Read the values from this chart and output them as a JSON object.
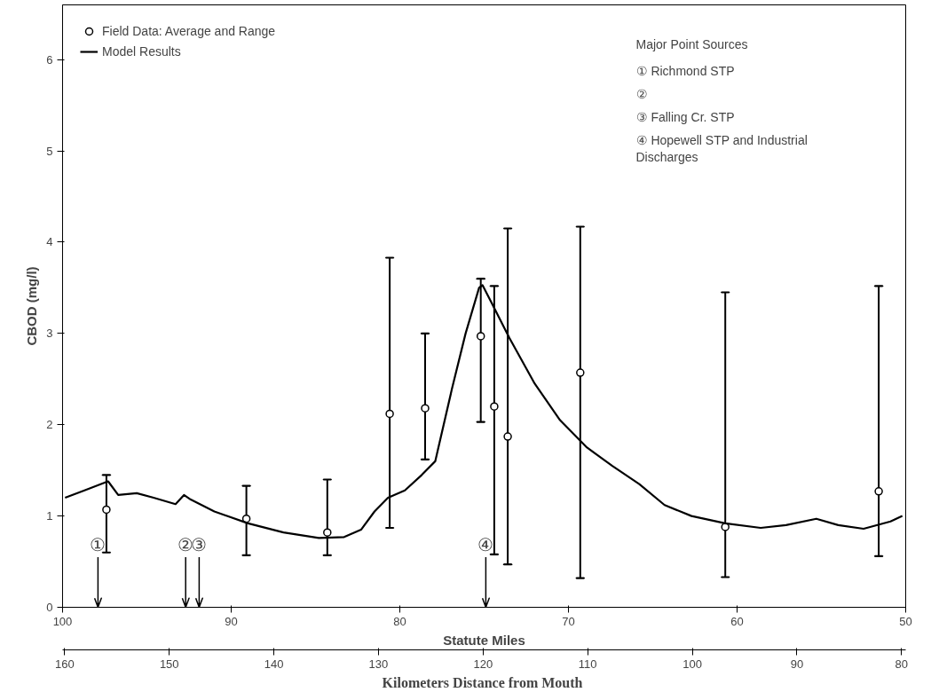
{
  "chart_data": {
    "type": "line",
    "xlabel": "Statute Miles",
    "ylabel": "CBOD (mg/l)",
    "x2label": "Kilometers  Distance from Mouth",
    "xlim": [
      100,
      50
    ],
    "xticks": [
      100,
      90,
      80,
      70,
      60,
      50
    ],
    "ylim": [
      0,
      6.6
    ],
    "yticks": [
      0,
      1,
      2,
      3,
      4,
      5,
      6
    ],
    "x2lim": [
      160.2,
      79.6
    ],
    "x2ticks": [
      160,
      150,
      140,
      130,
      120,
      110,
      100,
      90,
      80
    ],
    "grid": false,
    "legend": "top left",
    "series": [
      {
        "name": "Field Data: Average and Range",
        "type": "scatter",
        "marker": "circle",
        "color": "#000000",
        "x": [
          97.4,
          89.1,
          84.3,
          80.6,
          78.5,
          75.2,
          74.4,
          73.6,
          69.3,
          60.7,
          51.6
        ],
        "values": [
          1.07,
          0.97,
          0.82,
          2.12,
          2.18,
          2.97,
          2.2,
          1.87,
          2.57,
          0.88,
          1.27
        ],
        "errors": [
          [
            0.6,
            1.45
          ],
          [
            0.57,
            1.33
          ],
          [
            0.57,
            1.4
          ],
          [
            0.87,
            3.83
          ],
          [
            1.62,
            3.0
          ],
          [
            2.03,
            3.6
          ],
          [
            0.58,
            3.52
          ],
          [
            0.47,
            4.15
          ],
          [
            0.32,
            4.17
          ],
          [
            0.33,
            3.45
          ],
          [
            0.56,
            3.52
          ]
        ]
      },
      {
        "name": "Model Results",
        "color": "#000000",
        "line_style": "solid",
        "x": [
          99.85,
          98.7,
          97.3,
          96.7,
          95.6,
          94.6,
          93.3,
          92.8,
          92.4,
          91.0,
          89.0,
          86.9,
          84.8,
          83.3,
          82.3,
          81.5,
          80.7,
          79.7,
          78.7,
          77.9,
          76.9,
          76.1,
          75.3,
          75.1,
          74.6,
          73.5,
          72.0,
          70.5,
          68.9,
          67.4,
          65.8,
          64.3,
          62.7,
          60.7,
          58.6,
          57.1,
          55.3,
          54.0,
          52.5,
          50.9,
          50.2
        ],
        "values": [
          1.2,
          1.28,
          1.38,
          1.23,
          1.25,
          1.2,
          1.13,
          1.23,
          1.18,
          1.05,
          0.92,
          0.82,
          0.76,
          0.77,
          0.85,
          1.05,
          1.2,
          1.28,
          1.45,
          1.6,
          2.4,
          3.0,
          3.5,
          3.53,
          3.35,
          2.95,
          2.45,
          2.05,
          1.75,
          1.55,
          1.35,
          1.12,
          1.0,
          0.92,
          0.87,
          0.9,
          0.97,
          0.9,
          0.86,
          0.94,
          1.0
        ]
      }
    ],
    "ref_lines": [
      {
        "axis": "x",
        "value": 97.9,
        "label": "①"
      },
      {
        "axis": "x",
        "value": 92.7,
        "label": "②"
      },
      {
        "axis": "x",
        "value": 91.9,
        "label": "③"
      },
      {
        "axis": "x",
        "value": 74.9,
        "label": "④"
      }
    ],
    "annotations": [
      "Major Point Sources",
      "① Richmond STP",
      "②",
      "③ Falling Cr. STP",
      "④ Hopewell STP and Industrial\nDischarges"
    ]
  }
}
